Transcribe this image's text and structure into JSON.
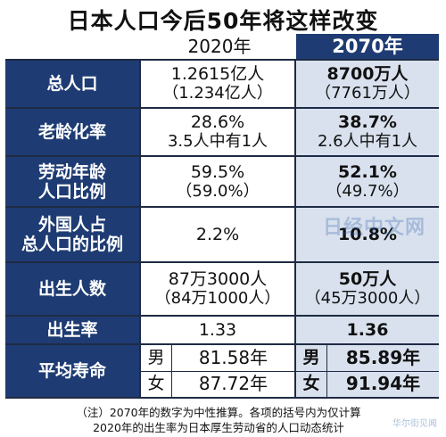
{
  "title": "日本人口今后50年将这样改变",
  "columns": {
    "y2020": "2020年",
    "y2070": "2070年"
  },
  "rows": [
    {
      "label": [
        "总人口"
      ],
      "v2020": [
        "1.2615亿人",
        "（1.234亿人）"
      ],
      "v2070": [
        "8700万人",
        "（7761万人）"
      ]
    },
    {
      "label": [
        "老龄化率"
      ],
      "v2020": [
        "28.6%",
        "3.5人中有1人"
      ],
      "v2070": [
        "38.7%",
        "2.6人中有1人"
      ]
    },
    {
      "label": [
        "劳动年龄",
        "人口比例"
      ],
      "v2020": [
        "59.5%",
        "（59.0%）"
      ],
      "v2070": [
        "52.1%",
        "（49.7%）"
      ]
    },
    {
      "label": [
        "外国人占",
        "总人口的比例"
      ],
      "v2020": [
        "2.2%"
      ],
      "v2070": [
        "10.8%"
      ]
    },
    {
      "label": [
        "出生人数"
      ],
      "v2020": [
        "87万3000人",
        "（84万1000人）"
      ],
      "v2070": [
        "50万人",
        "（45万3000人）"
      ]
    },
    {
      "label": [
        "出生率"
      ],
      "v2020": [
        "1.33"
      ],
      "v2070": [
        "1.36"
      ]
    }
  ],
  "life": {
    "label": "平均寿命",
    "male": "男",
    "female": "女",
    "m2020": "81.58年",
    "f2020": "87.72年",
    "m2070": "85.89年",
    "f2070": "91.94年"
  },
  "note": [
    "（注）2070年的数字为中性推算。各项的括号内为仅计算",
    "2020年的出生率为日本厚生劳动省的人口动态统计"
  ],
  "watermark": "日经中文网",
  "corner_mark": "华尔街见闻",
  "colors": {
    "header_navy": "#1e3c73",
    "highlight_col": "#d9e1ee"
  }
}
